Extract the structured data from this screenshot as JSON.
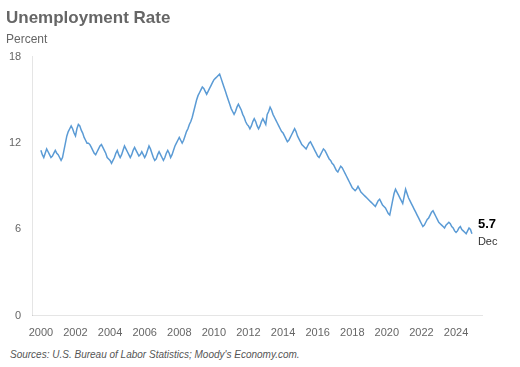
{
  "chart_data": {
    "type": "line",
    "title": "Unemployment Rate",
    "subtitle": "Percent",
    "source": "Sources: U.S. Bureau of Labor Statistics; Moody's Economy.com.",
    "annotations": [
      "5.7",
      "Dec"
    ],
    "color": "#5B9BD5",
    "grid": false,
    "xlim": [
      1999.5,
      2025.5
    ],
    "xticks": [
      2000,
      2002,
      2004,
      2006,
      2008,
      2010,
      2012,
      2014,
      2016,
      2018,
      2020,
      2022,
      2024
    ],
    "ylim": [
      0,
      18
    ],
    "yticks": [
      0,
      6,
      12,
      18
    ],
    "x": [
      2000.0,
      2000.083,
      2000.167,
      2000.25,
      2000.333,
      2000.417,
      2000.5,
      2000.583,
      2000.667,
      2000.75,
      2000.833,
      2000.917,
      2001.0,
      2001.083,
      2001.167,
      2001.25,
      2001.333,
      2001.417,
      2001.5,
      2001.583,
      2001.667,
      2001.75,
      2001.833,
      2001.917,
      2002.0,
      2002.083,
      2002.167,
      2002.25,
      2002.333,
      2002.417,
      2002.5,
      2002.583,
      2002.667,
      2002.75,
      2002.833,
      2002.917,
      2003.0,
      2003.083,
      2003.167,
      2003.25,
      2003.333,
      2003.417,
      2003.5,
      2003.583,
      2003.667,
      2003.75,
      2003.833,
      2003.917,
      2004.0,
      2004.083,
      2004.167,
      2004.25,
      2004.333,
      2004.417,
      2004.5,
      2004.583,
      2004.667,
      2004.75,
      2004.833,
      2004.917,
      2005.0,
      2005.083,
      2005.167,
      2005.25,
      2005.333,
      2005.417,
      2005.5,
      2005.583,
      2005.667,
      2005.75,
      2005.833,
      2005.917,
      2006.0,
      2006.083,
      2006.167,
      2006.25,
      2006.333,
      2006.417,
      2006.5,
      2006.583,
      2006.667,
      2006.75,
      2006.833,
      2006.917,
      2007.0,
      2007.083,
      2007.167,
      2007.25,
      2007.333,
      2007.417,
      2007.5,
      2007.583,
      2007.667,
      2007.75,
      2007.833,
      2007.917,
      2008.0,
      2008.083,
      2008.167,
      2008.25,
      2008.333,
      2008.417,
      2008.5,
      2008.583,
      2008.667,
      2008.75,
      2008.833,
      2008.917,
      2009.0,
      2009.083,
      2009.167,
      2009.25,
      2009.333,
      2009.417,
      2009.5,
      2009.583,
      2009.667,
      2009.75,
      2009.833,
      2009.917,
      2010.0,
      2010.083,
      2010.167,
      2010.25,
      2010.333,
      2010.417,
      2010.5,
      2010.583,
      2010.667,
      2010.75,
      2010.833,
      2010.917,
      2011.0,
      2011.083,
      2011.167,
      2011.25,
      2011.333,
      2011.417,
      2011.5,
      2011.583,
      2011.667,
      2011.75,
      2011.833,
      2011.917,
      2012.0,
      2012.083,
      2012.167,
      2012.25,
      2012.333,
      2012.417,
      2012.5,
      2012.583,
      2012.667,
      2012.75,
      2012.833,
      2012.917,
      2013.0,
      2013.083,
      2013.167,
      2013.25,
      2013.333,
      2013.417,
      2013.5,
      2013.583,
      2013.667,
      2013.75,
      2013.833,
      2013.917,
      2014.0,
      2014.083,
      2014.167,
      2014.25,
      2014.333,
      2014.417,
      2014.5,
      2014.583,
      2014.667,
      2014.75,
      2014.833,
      2014.917,
      2015.0,
      2015.083,
      2015.167,
      2015.25,
      2015.333,
      2015.417,
      2015.5,
      2015.583,
      2015.667,
      2015.75,
      2015.833,
      2015.917,
      2016.0,
      2016.083,
      2016.167,
      2016.25,
      2016.333,
      2016.417,
      2016.5,
      2016.583,
      2016.667,
      2016.75,
      2016.833,
      2016.917,
      2017.0,
      2017.083,
      2017.167,
      2017.25,
      2017.333,
      2017.417,
      2017.5,
      2017.583,
      2017.667,
      2017.75,
      2017.833,
      2017.917,
      2018.0,
      2018.083,
      2018.167,
      2018.25,
      2018.333,
      2018.417,
      2018.5,
      2018.583,
      2018.667,
      2018.75,
      2018.833,
      2018.917,
      2019.0,
      2019.083,
      2019.167,
      2019.25,
      2019.333,
      2019.417,
      2019.5,
      2019.583,
      2019.667,
      2019.75,
      2019.833,
      2019.917,
      2020.0,
      2020.083,
      2020.167,
      2020.25,
      2020.333,
      2020.417,
      2020.5,
      2020.583,
      2020.667,
      2020.75,
      2020.833,
      2020.917,
      2021.0,
      2021.083,
      2021.167,
      2021.25,
      2021.333,
      2021.417,
      2021.5,
      2021.583,
      2021.667,
      2021.75,
      2021.833,
      2021.917,
      2022.0,
      2022.083,
      2022.167,
      2022.25,
      2022.333,
      2022.417,
      2022.5,
      2022.583,
      2022.667,
      2022.75,
      2022.833,
      2022.917,
      2023.0,
      2023.083,
      2023.167,
      2023.25,
      2023.333,
      2023.417,
      2023.5,
      2023.583,
      2023.667,
      2023.75,
      2023.833,
      2023.917,
      2024.0,
      2024.083,
      2024.167,
      2024.25,
      2024.333,
      2024.417,
      2024.5,
      2024.583,
      2024.667,
      2024.75,
      2024.833,
      2024.917
    ],
    "values": [
      11.5,
      11.2,
      11.0,
      11.3,
      11.6,
      11.4,
      11.2,
      11.0,
      11.1,
      11.3,
      11.5,
      11.3,
      11.2,
      11.0,
      10.8,
      11.0,
      11.5,
      12.0,
      12.5,
      12.8,
      13.0,
      13.2,
      13.0,
      12.7,
      12.5,
      13.0,
      13.3,
      13.2,
      12.9,
      12.7,
      12.4,
      12.2,
      12.0,
      12.0,
      11.9,
      11.7,
      11.5,
      11.3,
      11.2,
      11.4,
      11.6,
      11.8,
      11.9,
      11.7,
      11.5,
      11.3,
      11.0,
      10.9,
      10.8,
      10.6,
      10.8,
      11.0,
      11.3,
      11.5,
      11.2,
      11.0,
      11.2,
      11.5,
      11.8,
      11.6,
      11.4,
      11.2,
      11.0,
      11.2,
      11.5,
      11.7,
      11.5,
      11.3,
      11.1,
      11.2,
      11.4,
      11.2,
      11.0,
      11.2,
      11.5,
      11.8,
      11.6,
      11.3,
      11.0,
      10.8,
      10.9,
      11.2,
      11.4,
      11.2,
      11.0,
      10.8,
      11.0,
      11.3,
      11.5,
      11.3,
      11.0,
      11.2,
      11.5,
      11.8,
      12.0,
      12.2,
      12.4,
      12.2,
      12.0,
      12.2,
      12.5,
      12.8,
      13.0,
      13.3,
      13.5,
      13.8,
      14.2,
      14.6,
      15.0,
      15.3,
      15.5,
      15.7,
      15.9,
      15.8,
      15.6,
      15.4,
      15.6,
      15.8,
      16.0,
      16.2,
      16.4,
      16.5,
      16.6,
      16.7,
      16.8,
      16.5,
      16.2,
      15.9,
      15.6,
      15.3,
      15.0,
      14.7,
      14.4,
      14.2,
      14.0,
      14.2,
      14.5,
      14.7,
      14.5,
      14.3,
      14.0,
      13.8,
      13.5,
      13.3,
      13.2,
      13.0,
      13.2,
      13.5,
      13.7,
      13.5,
      13.2,
      13.0,
      13.2,
      13.5,
      13.7,
      13.5,
      13.3,
      14.0,
      14.2,
      14.5,
      14.3,
      14.0,
      13.8,
      13.6,
      13.4,
      13.2,
      13.0,
      12.8,
      12.7,
      12.5,
      12.3,
      12.1,
      12.2,
      12.4,
      12.6,
      12.8,
      13.0,
      12.8,
      12.5,
      12.3,
      12.1,
      11.9,
      11.8,
      11.7,
      11.6,
      11.8,
      12.0,
      12.1,
      11.9,
      11.7,
      11.5,
      11.3,
      11.1,
      11.0,
      11.2,
      11.4,
      11.6,
      11.5,
      11.3,
      11.1,
      10.9,
      10.8,
      10.6,
      10.5,
      10.3,
      10.1,
      10.0,
      10.2,
      10.4,
      10.3,
      10.1,
      9.9,
      9.7,
      9.5,
      9.3,
      9.1,
      8.9,
      8.8,
      8.7,
      8.8,
      9.0,
      8.8,
      8.6,
      8.5,
      8.4,
      8.3,
      8.2,
      8.1,
      8.0,
      7.9,
      7.8,
      7.7,
      7.6,
      7.8,
      8.0,
      8.1,
      7.9,
      7.7,
      7.6,
      7.5,
      7.3,
      7.1,
      7.0,
      7.5,
      8.0,
      8.5,
      8.8,
      8.6,
      8.4,
      8.2,
      8.0,
      7.8,
      8.3,
      8.8,
      8.5,
      8.2,
      8.0,
      7.8,
      7.6,
      7.4,
      7.2,
      7.0,
      6.8,
      6.6,
      6.4,
      6.2,
      6.3,
      6.5,
      6.7,
      6.8,
      7.0,
      7.2,
      7.3,
      7.1,
      6.9,
      6.7,
      6.5,
      6.4,
      6.3,
      6.2,
      6.1,
      6.3,
      6.4,
      6.5,
      6.4,
      6.2,
      6.1,
      5.9,
      5.8,
      5.9,
      6.1,
      6.2,
      6.0,
      5.9,
      5.8,
      5.7,
      5.9,
      6.1,
      6.0,
      5.7
    ]
  }
}
